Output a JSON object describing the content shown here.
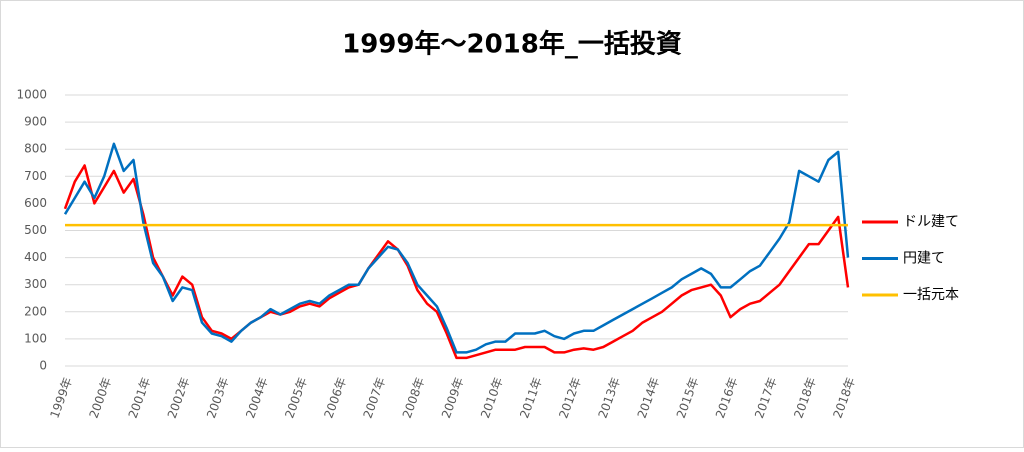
{
  "chart_data": {
    "type": "line",
    "title": "1999年～2018年_一括投資",
    "categories": [
      "1999年",
      null,
      null,
      null,
      "2000年",
      null,
      null,
      null,
      "2001年",
      null,
      null,
      null,
      "2002年",
      null,
      null,
      null,
      "2003年",
      null,
      null,
      null,
      "2004年",
      null,
      null,
      null,
      "2005年",
      null,
      null,
      null,
      "2006年",
      null,
      null,
      null,
      "2007年",
      null,
      null,
      null,
      "2008年",
      null,
      null,
      null,
      "2009年",
      null,
      null,
      null,
      "2010年",
      null,
      null,
      null,
      "2011年",
      null,
      null,
      null,
      "2012年",
      null,
      null,
      null,
      "2013年",
      null,
      null,
      null,
      "2014年",
      null,
      null,
      null,
      "2015年",
      null,
      null,
      null,
      "2016年",
      null,
      null,
      null,
      "2017年",
      null,
      null,
      null,
      "2018年",
      null,
      null,
      null,
      "2018年"
    ],
    "series": [
      {
        "name": "ドル建て",
        "color": "#ff0000",
        "values": [
          580,
          680,
          740,
          600,
          660,
          720,
          640,
          690,
          560,
          400,
          330,
          260,
          330,
          300,
          180,
          130,
          120,
          100,
          130,
          160,
          180,
          200,
          190,
          200,
          220,
          230,
          220,
          250,
          270,
          290,
          300,
          360,
          410,
          460,
          430,
          370,
          280,
          230,
          200,
          120,
          30,
          30,
          40,
          50,
          60,
          60,
          60,
          70,
          70,
          70,
          50,
          50,
          60,
          65,
          60,
          70,
          90,
          110,
          130,
          160,
          180,
          200,
          230,
          260,
          280,
          290,
          300,
          260,
          180,
          210,
          230,
          240,
          270,
          300,
          350,
          400,
          450,
          450,
          500,
          550,
          290
        ]
      },
      {
        "name": "円建て",
        "color": "#0070c0",
        "values": [
          560,
          620,
          680,
          620,
          700,
          820,
          720,
          760,
          530,
          380,
          330,
          240,
          290,
          280,
          160,
          120,
          110,
          90,
          130,
          160,
          180,
          210,
          190,
          210,
          230,
          240,
          230,
          260,
          280,
          300,
          300,
          360,
          400,
          440,
          430,
          380,
          300,
          260,
          220,
          140,
          50,
          50,
          60,
          80,
          90,
          90,
          120,
          120,
          120,
          130,
          110,
          100,
          120,
          130,
          130,
          150,
          170,
          190,
          210,
          230,
          250,
          270,
          290,
          320,
          340,
          360,
          340,
          290,
          290,
          320,
          350,
          370,
          420,
          470,
          530,
          720,
          700,
          680,
          760,
          790,
          400
        ]
      },
      {
        "name": "一括元本",
        "color": "#ffc000",
        "values": [
          520,
          520,
          520,
          520,
          520,
          520,
          520,
          520,
          520,
          520,
          520,
          520,
          520,
          520,
          520,
          520,
          520,
          520,
          520,
          520,
          520,
          520,
          520,
          520,
          520,
          520,
          520,
          520,
          520,
          520,
          520,
          520,
          520,
          520,
          520,
          520,
          520,
          520,
          520,
          520,
          520,
          520,
          520,
          520,
          520,
          520,
          520,
          520,
          520,
          520,
          520,
          520,
          520,
          520,
          520,
          520,
          520,
          520,
          520,
          520,
          520,
          520,
          520,
          520,
          520,
          520,
          520,
          520,
          520,
          520,
          520,
          520,
          520,
          520,
          520,
          520,
          520,
          520,
          520,
          520,
          520
        ]
      }
    ],
    "ylim": [
      0,
      1000
    ],
    "yticks": [
      0,
      100,
      200,
      300,
      400,
      500,
      600,
      700,
      800,
      900,
      1000
    ],
    "grid": true,
    "legend": "right"
  }
}
